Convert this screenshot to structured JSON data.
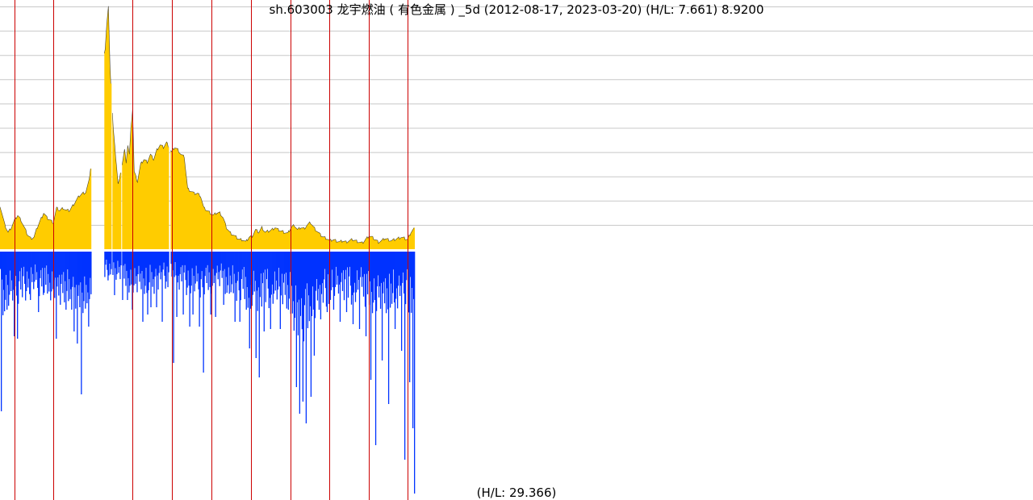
{
  "chart_data": {
    "type": "bar",
    "title": "sh.603003 龙宇燃油 ( 有色金属 ) _5d (2012-08-17, 2023-03-20) (H/L: 7.661) 8.9200",
    "bottom_label": "(H/L: 29.366)",
    "date_range": [
      "2012-08-17",
      "2023-03-20"
    ],
    "panels": [
      {
        "name": "upper",
        "type": "area",
        "color": "#ffcc00",
        "outline_color": "#000000",
        "ylim": [
          0,
          10
        ],
        "gridlines": [
          1,
          2,
          3,
          4,
          5,
          6,
          7,
          8,
          9,
          10
        ],
        "x_index_range": [
          0,
          512
        ],
        "gaps": [
          [
            112,
            129
          ],
          [
            137,
            139
          ],
          [
            149,
            151
          ],
          [
            208,
            211
          ]
        ],
        "keypoints": [
          [
            0,
            1.8
          ],
          [
            3,
            1.4
          ],
          [
            6,
            1.0
          ],
          [
            10,
            0.7
          ],
          [
            14,
            0.9
          ],
          [
            18,
            1.2
          ],
          [
            22,
            1.4
          ],
          [
            26,
            1.2
          ],
          [
            30,
            0.9
          ],
          [
            34,
            0.6
          ],
          [
            38,
            0.45
          ],
          [
            42,
            0.5
          ],
          [
            46,
            0.9
          ],
          [
            50,
            1.2
          ],
          [
            54,
            1.5
          ],
          [
            58,
            1.3
          ],
          [
            62,
            1.2
          ],
          [
            66,
            1.1
          ],
          [
            70,
            1.7
          ],
          [
            74,
            1.6
          ],
          [
            78,
            1.7
          ],
          [
            82,
            1.6
          ],
          [
            86,
            1.6
          ],
          [
            90,
            1.8
          ],
          [
            94,
            2.0
          ],
          [
            98,
            2.2
          ],
          [
            102,
            2.3
          ],
          [
            106,
            2.35
          ],
          [
            110,
            2.8
          ],
          [
            130,
            8.3
          ],
          [
            132,
            9.3
          ],
          [
            134,
            10.0
          ],
          [
            136,
            7.5
          ],
          [
            140,
            5.0
          ],
          [
            142,
            4.2
          ],
          [
            144,
            3.5
          ],
          [
            146,
            2.7
          ],
          [
            148,
            2.9
          ],
          [
            152,
            3.7
          ],
          [
            154,
            4.1
          ],
          [
            156,
            3.6
          ],
          [
            158,
            4.3
          ],
          [
            160,
            3.9
          ],
          [
            162,
            5.0
          ],
          [
            164,
            5.8
          ],
          [
            166,
            3.2
          ],
          [
            170,
            2.8
          ],
          [
            174,
            3.5
          ],
          [
            178,
            3.7
          ],
          [
            182,
            3.6
          ],
          [
            186,
            3.9
          ],
          [
            190,
            3.7
          ],
          [
            194,
            4.1
          ],
          [
            198,
            4.3
          ],
          [
            202,
            4.2
          ],
          [
            206,
            4.4
          ],
          [
            212,
            4.0
          ],
          [
            216,
            4.2
          ],
          [
            220,
            4.1
          ],
          [
            224,
            3.9
          ],
          [
            228,
            3.8
          ],
          [
            232,
            2.5
          ],
          [
            236,
            2.4
          ],
          [
            240,
            2.3
          ],
          [
            244,
            2.3
          ],
          [
            248,
            2.2
          ],
          [
            252,
            1.7
          ],
          [
            256,
            1.6
          ],
          [
            260,
            1.5
          ],
          [
            264,
            1.4
          ],
          [
            268,
            1.5
          ],
          [
            272,
            1.5
          ],
          [
            276,
            1.3
          ],
          [
            280,
            0.9
          ],
          [
            284,
            0.7
          ],
          [
            288,
            0.6
          ],
          [
            292,
            0.5
          ],
          [
            296,
            0.4
          ],
          [
            300,
            0.4
          ],
          [
            304,
            0.3
          ],
          [
            308,
            0.5
          ],
          [
            312,
            0.55
          ],
          [
            316,
            0.8
          ],
          [
            320,
            0.7
          ],
          [
            324,
            0.9
          ],
          [
            328,
            0.7
          ],
          [
            332,
            0.75
          ],
          [
            336,
            0.8
          ],
          [
            340,
            0.9
          ],
          [
            344,
            0.8
          ],
          [
            348,
            0.75
          ],
          [
            352,
            0.7
          ],
          [
            356,
            0.65
          ],
          [
            360,
            0.9
          ],
          [
            364,
            1.0
          ],
          [
            368,
            0.8
          ],
          [
            372,
            0.9
          ],
          [
            376,
            0.85
          ],
          [
            380,
            1.0
          ],
          [
            384,
            1.1
          ],
          [
            388,
            0.9
          ],
          [
            392,
            0.75
          ],
          [
            396,
            0.6
          ],
          [
            400,
            0.5
          ],
          [
            404,
            0.45
          ],
          [
            408,
            0.35
          ],
          [
            412,
            0.4
          ],
          [
            416,
            0.35
          ],
          [
            420,
            0.3
          ],
          [
            424,
            0.35
          ],
          [
            428,
            0.3
          ],
          [
            432,
            0.35
          ],
          [
            436,
            0.4
          ],
          [
            440,
            0.35
          ],
          [
            444,
            0.3
          ],
          [
            448,
            0.25
          ],
          [
            452,
            0.4
          ],
          [
            456,
            0.55
          ],
          [
            460,
            0.5
          ],
          [
            464,
            0.4
          ],
          [
            468,
            0.3
          ],
          [
            472,
            0.35
          ],
          [
            476,
            0.45
          ],
          [
            480,
            0.4
          ],
          [
            484,
            0.35
          ],
          [
            488,
            0.4
          ],
          [
            492,
            0.45
          ],
          [
            496,
            0.5
          ],
          [
            500,
            0.45
          ],
          [
            504,
            0.4
          ],
          [
            508,
            0.7
          ],
          [
            512,
            0.85
          ]
        ]
      },
      {
        "name": "lower",
        "type": "bar",
        "color": "#0033ff",
        "orientation": "down",
        "ylim": [
          0,
          1
        ],
        "x_index_range": [
          0,
          512
        ],
        "gaps": [
          [
            112,
            129
          ],
          [
            137,
            139
          ],
          [
            149,
            151
          ],
          [
            208,
            211
          ]
        ],
        "spikes": [
          [
            1,
            0.66
          ],
          [
            17,
            0.35
          ],
          [
            21,
            0.36
          ],
          [
            37,
            0.2
          ],
          [
            47,
            0.25
          ],
          [
            54,
            0.17
          ],
          [
            69,
            0.36
          ],
          [
            81,
            0.24
          ],
          [
            91,
            0.33
          ],
          [
            95,
            0.38
          ],
          [
            100,
            0.59
          ],
          [
            109,
            0.31
          ],
          [
            141,
            0.18
          ],
          [
            151,
            0.2
          ],
          [
            157,
            0.2
          ],
          [
            163,
            0.24
          ],
          [
            176,
            0.29
          ],
          [
            182,
            0.26
          ],
          [
            186,
            0.23
          ],
          [
            193,
            0.23
          ],
          [
            200,
            0.29
          ],
          [
            214,
            0.46
          ],
          [
            218,
            0.27
          ],
          [
            226,
            0.26
          ],
          [
            234,
            0.31
          ],
          [
            238,
            0.26
          ],
          [
            246,
            0.31
          ],
          [
            251,
            0.5
          ],
          [
            260,
            0.26
          ],
          [
            266,
            0.27
          ],
          [
            276,
            0.22
          ],
          [
            290,
            0.29
          ],
          [
            296,
            0.29
          ],
          [
            308,
            0.4
          ],
          [
            316,
            0.44
          ],
          [
            320,
            0.52
          ],
          [
            326,
            0.33
          ],
          [
            334,
            0.32
          ],
          [
            346,
            0.32
          ],
          [
            356,
            0.24
          ],
          [
            366,
            0.56
          ],
          [
            370,
            0.67
          ],
          [
            374,
            0.62
          ],
          [
            378,
            0.71
          ],
          [
            384,
            0.6
          ],
          [
            388,
            0.43
          ],
          [
            396,
            0.28
          ],
          [
            404,
            0.25
          ],
          [
            412,
            0.24
          ],
          [
            420,
            0.29
          ],
          [
            428,
            0.25
          ],
          [
            436,
            0.3
          ],
          [
            444,
            0.32
          ],
          [
            452,
            0.35
          ],
          [
            458,
            0.53
          ],
          [
            464,
            0.8
          ],
          [
            472,
            0.45
          ],
          [
            480,
            0.63
          ],
          [
            488,
            0.32
          ],
          [
            496,
            0.41
          ],
          [
            500,
            0.86
          ],
          [
            506,
            0.54
          ],
          [
            510,
            0.73
          ],
          [
            512,
            1.0
          ]
        ],
        "baseline_band": [
          [
            0,
            0.18
          ],
          [
            20,
            0.16
          ],
          [
            40,
            0.12
          ],
          [
            60,
            0.14
          ],
          [
            80,
            0.15
          ],
          [
            100,
            0.18
          ],
          [
            111,
            0.14
          ],
          [
            130,
            0.08
          ],
          [
            150,
            0.1
          ],
          [
            170,
            0.13
          ],
          [
            190,
            0.12
          ],
          [
            210,
            0.1
          ],
          [
            230,
            0.12
          ],
          [
            250,
            0.13
          ],
          [
            270,
            0.11
          ],
          [
            290,
            0.14
          ],
          [
            310,
            0.17
          ],
          [
            330,
            0.16
          ],
          [
            350,
            0.15
          ],
          [
            370,
            0.27
          ],
          [
            390,
            0.18
          ],
          [
            410,
            0.14
          ],
          [
            430,
            0.15
          ],
          [
            450,
            0.16
          ],
          [
            470,
            0.18
          ],
          [
            490,
            0.16
          ],
          [
            512,
            0.18
          ]
        ]
      }
    ],
    "year_markers": [
      18,
      66,
      164,
      213,
      261,
      310,
      359,
      407,
      456,
      504
    ],
    "marker_color": "#cc0000",
    "grid": true,
    "legend": "none"
  }
}
